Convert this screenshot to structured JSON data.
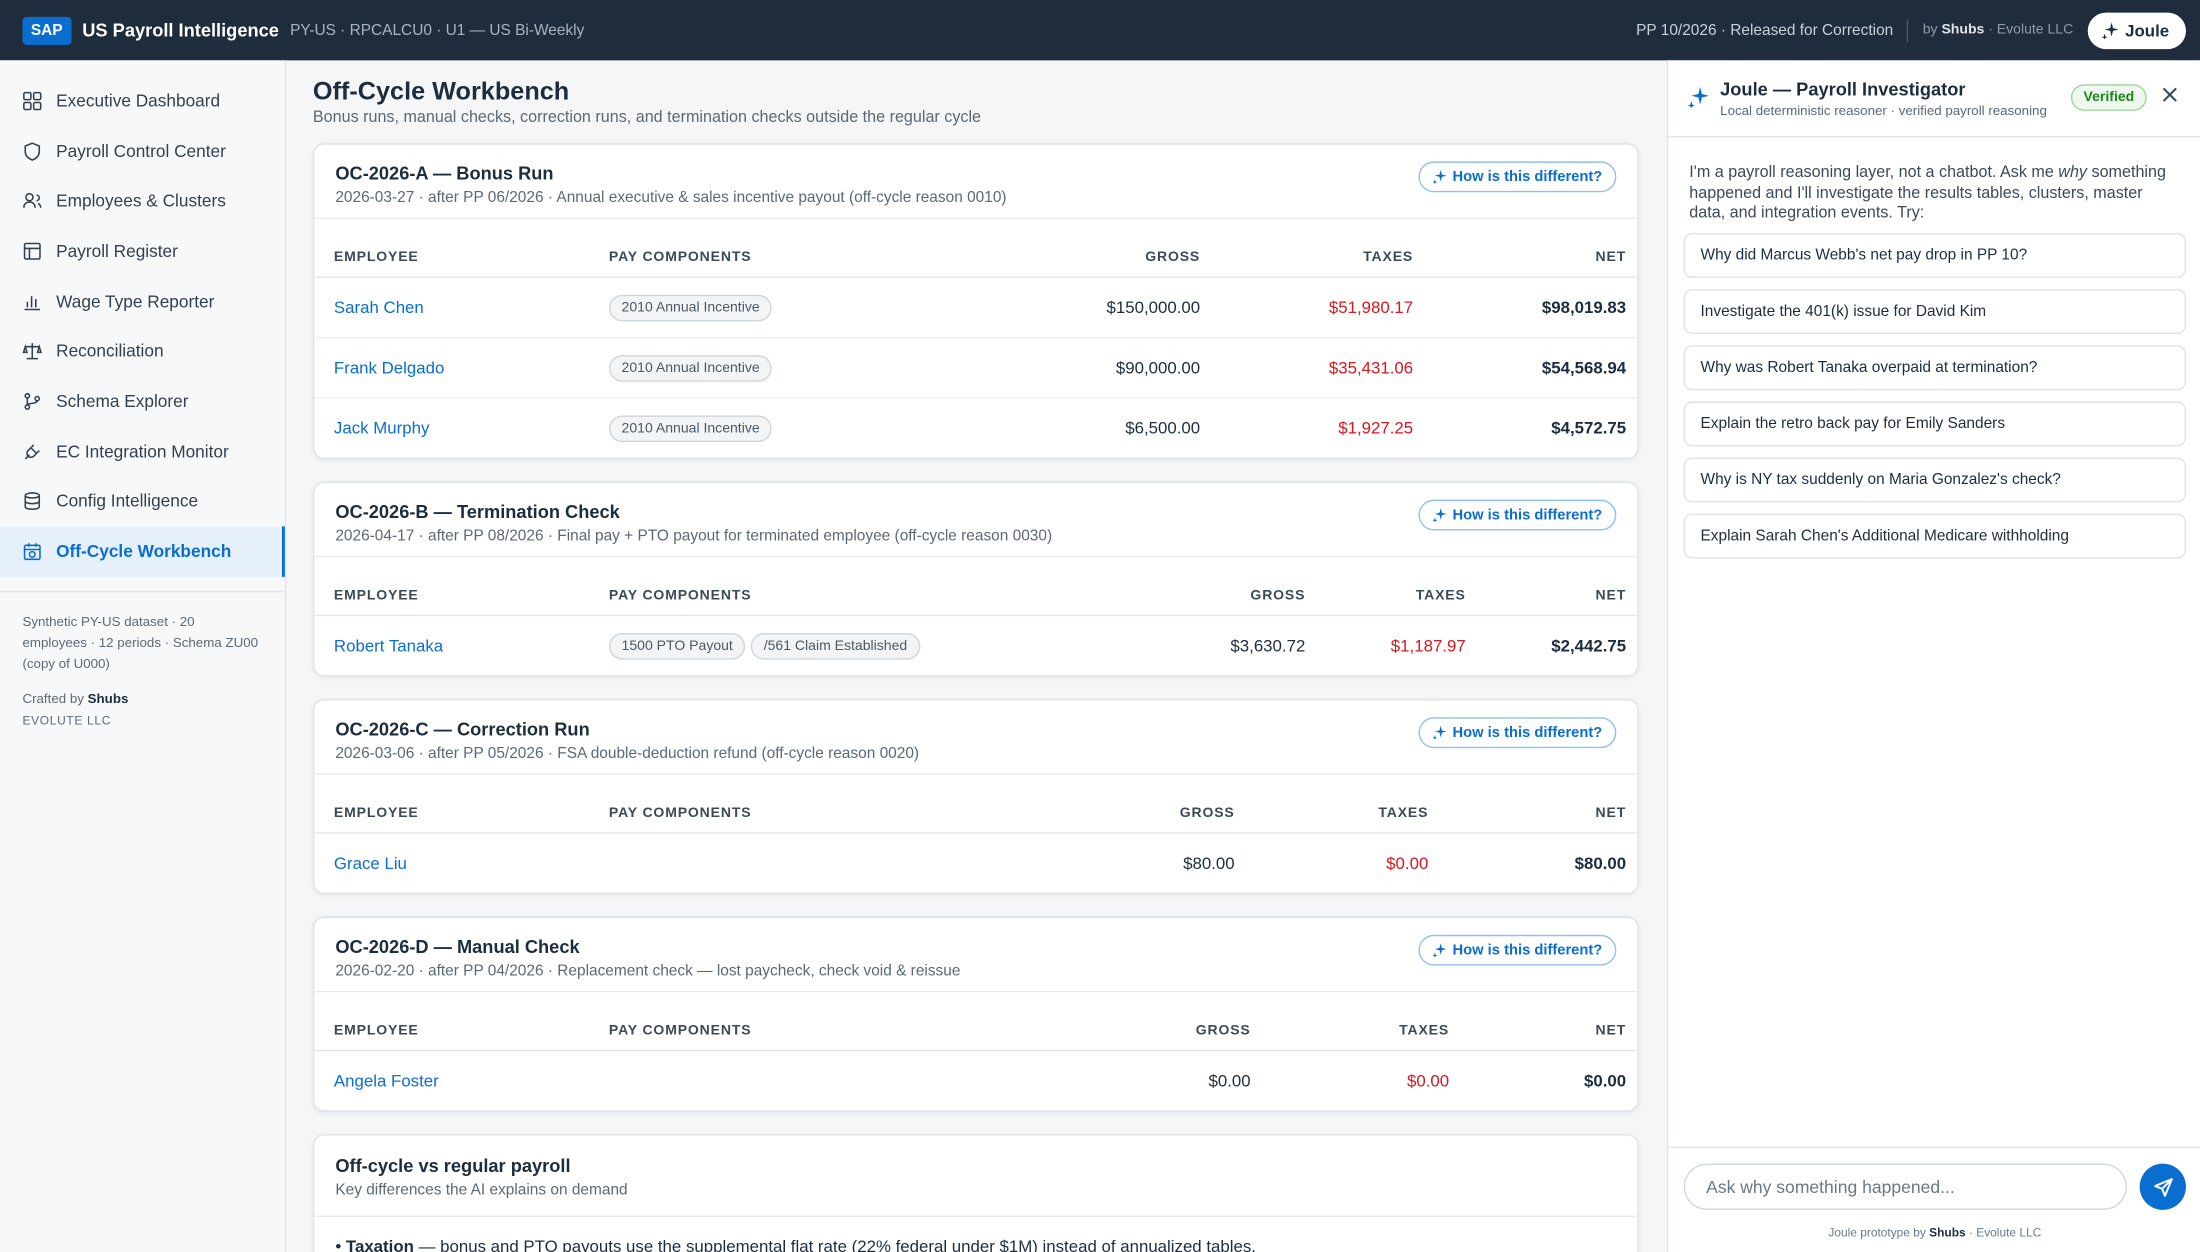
{
  "header": {
    "logo": "SAP",
    "title": "US Payroll Intelligence",
    "context": "PY-US · RPCALCU0 · U1 — US Bi-Weekly",
    "status": "PP 10/2026 · Released for Correction",
    "by": "by",
    "author": "Shubs",
    "company": "· Evolute LLC",
    "joule_button": "Joule"
  },
  "sidebar": {
    "nav": [
      "Executive Dashboard",
      "Payroll Control Center",
      "Employees & Clusters",
      "Payroll Register",
      "Wage Type Reporter",
      "Reconciliation",
      "Schema Explorer",
      "EC Integration Monitor",
      "Config Intelligence",
      "Off-Cycle Workbench"
    ],
    "footnote": "Synthetic PY-US dataset · 20 employees · 12 periods · Schema ZU00 (copy of U000)",
    "crafted_by": "Crafted by",
    "crafted_author": "Shubs",
    "company": "EVOLUTE LLC"
  },
  "main": {
    "title": "Off-Cycle Workbench",
    "subtitle": "Bonus runs, manual checks, correction runs, and termination checks outside the regular cycle",
    "runs": [
      {
        "title": "OC-2026-A — Bonus Run",
        "meta": "2026-03-27 · after PP 06/2026 · Annual executive & sales incentive payout (off-cycle reason 0010)",
        "button": "How is this different?",
        "columns": [
          "EMPLOYEE",
          "PAY COMPONENTS",
          "GROSS",
          "TAXES",
          "NET"
        ],
        "rows": [
          {
            "employee": "Sarah Chen",
            "components": [
              "2010 Annual Incentive"
            ],
            "gross": "$150,000.00",
            "taxes": "$51,980.17",
            "net": "$98,019.83"
          },
          {
            "employee": "Frank Delgado",
            "components": [
              "2010 Annual Incentive"
            ],
            "gross": "$90,000.00",
            "taxes": "$35,431.06",
            "net": "$54,568.94"
          },
          {
            "employee": "Jack Murphy",
            "components": [
              "2010 Annual Incentive"
            ],
            "gross": "$6,500.00",
            "taxes": "$1,927.25",
            "net": "$4,572.75"
          }
        ]
      },
      {
        "title": "OC-2026-B — Termination Check",
        "meta": "2026-04-17 · after PP 08/2026 · Final pay + PTO payout for terminated employee (off-cycle reason 0030)",
        "button": "How is this different?",
        "columns": [
          "EMPLOYEE",
          "PAY COMPONENTS",
          "GROSS",
          "TAXES",
          "NET"
        ],
        "rows": [
          {
            "employee": "Robert Tanaka",
            "components": [
              "1500 PTO Payout",
              "/561 Claim Established"
            ],
            "gross": "$3,630.72",
            "taxes": "$1,187.97",
            "net": "$2,442.75"
          }
        ]
      },
      {
        "title": "OC-2026-C — Correction Run",
        "meta": "2026-03-06 · after PP 05/2026 · FSA double-deduction refund (off-cycle reason 0020)",
        "button": "How is this different?",
        "columns": [
          "EMPLOYEE",
          "PAY COMPONENTS",
          "GROSS",
          "TAXES",
          "NET"
        ],
        "rows": [
          {
            "employee": "Grace Liu",
            "components": [],
            "gross": "$80.00",
            "taxes": "$0.00",
            "net": "$80.00"
          }
        ]
      },
      {
        "title": "OC-2026-D — Manual Check",
        "meta": "2026-02-20 · after PP 04/2026 · Replacement check — lost paycheck, check void & reissue",
        "button": "How is this different?",
        "columns": [
          "EMPLOYEE",
          "PAY COMPONENTS",
          "GROSS",
          "TAXES",
          "NET"
        ],
        "rows": [
          {
            "employee": "Angela Foster",
            "components": [],
            "gross": "$0.00",
            "taxes": "$0.00",
            "net": "$0.00"
          }
        ]
      }
    ],
    "comparison": {
      "title": "Off-cycle vs regular payroll",
      "subtitle": "Key differences the AI explains on demand",
      "bullet_term": "Taxation",
      "bullet_text": "— bonus and PTO payouts use the supplemental flat rate (22% federal under $1M) instead of annualized tables."
    }
  },
  "panel": {
    "title": "Joule — Payroll Investigator",
    "subtitle": "Local deterministic reasoner · verified payroll reasoning",
    "badge": "Verified",
    "intro_before": "I'm a payroll reasoning layer, not a chatbot. Ask me",
    "intro_em": "why",
    "intro_after": "something happened and I'll investigate the results tables, clusters, master data, and integration events. Try:",
    "suggestions": [
      "Why did Marcus Webb's net pay drop in PP 10?",
      "Investigate the 401(k) issue for David Kim",
      "Why was Robert Tanaka overpaid at termination?",
      "Explain the retro back pay for Emily Sanders",
      "Why is NY tax suddenly on Maria Gonzalez's check?",
      "Explain Sarah Chen's Additional Medicare withholding"
    ],
    "placeholder": "Ask why something happened...",
    "footer_before": "Joule prototype by",
    "footer_author": "Shubs",
    "footer_after": "· Evolute LLC"
  }
}
